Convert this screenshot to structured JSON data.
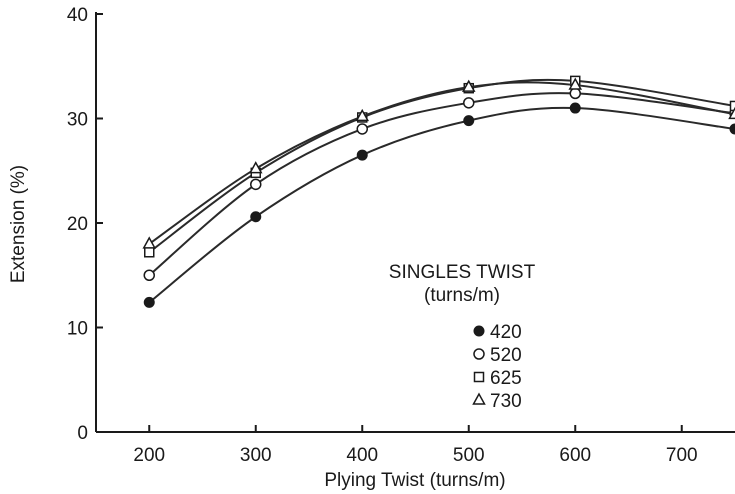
{
  "chart_data": {
    "type": "line",
    "xlabel": "Plying Twist (turns/m)",
    "ylabel": "Extension (%)",
    "xlim": [
      150,
      750
    ],
    "ylim": [
      0,
      40
    ],
    "x_ticks": [
      200,
      300,
      400,
      500,
      600,
      700
    ],
    "y_ticks": [
      0,
      10,
      20,
      30,
      40
    ],
    "grid": false,
    "legend": {
      "title": "SINGLES TWIST",
      "subtitle": "(turns/m)",
      "placement": "center-right",
      "entries": [
        {
          "label": "420",
          "marker": "filled-circle"
        },
        {
          "label": "520",
          "marker": "open-circle"
        },
        {
          "label": "625",
          "marker": "open-square"
        },
        {
          "label": "730",
          "marker": "open-triangle"
        }
      ]
    },
    "series": [
      {
        "marker": "filled-circle",
        "x": [
          200,
          300,
          400,
          500,
          600,
          750
        ],
        "y": [
          12.4,
          20.6,
          26.5,
          29.8,
          31.0,
          29.0
        ]
      },
      {
        "marker": "open-circle",
        "x": [
          200,
          300,
          400,
          500,
          600,
          750
        ],
        "y": [
          15.0,
          23.7,
          29.0,
          31.5,
          32.4,
          30.5
        ]
      },
      {
        "marker": "open-square",
        "x": [
          200,
          300,
          400,
          500,
          600,
          750
        ],
        "y": [
          17.2,
          24.8,
          30.1,
          32.9,
          33.6,
          31.2
        ]
      },
      {
        "marker": "open-triangle",
        "x": [
          200,
          300,
          400,
          500,
          600,
          750
        ],
        "y": [
          18.0,
          25.2,
          30.2,
          33.0,
          33.2,
          30.4
        ]
      }
    ]
  }
}
